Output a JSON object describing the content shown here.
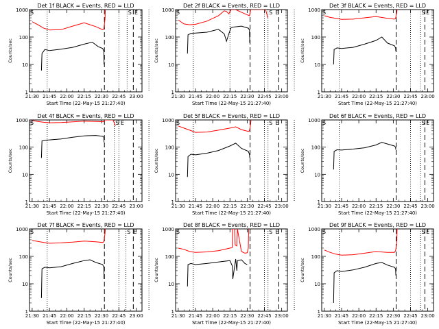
{
  "figure": {
    "background": "#ffffff",
    "events_color": "#000000",
    "lld_color": "#ff0000",
    "s_marker": "S",
    "e_marker": "E",
    "ylabel": "Counts/sec",
    "xlabel": "Start Time (22-May-15 21:27:40)",
    "xticks": [
      "21:30",
      "21:45",
      "22:00",
      "22:15",
      "22:30",
      "22:45",
      "23:00"
    ],
    "yticks": [
      "1",
      "10",
      "100",
      "1000"
    ]
  },
  "chart_data": [
    {
      "type": "line",
      "title": "Det 1f BLACK = Events, RED = LLD",
      "ylim": [
        1,
        1000
      ],
      "ylog": true,
      "x_range_min": [
        -2.3,
        95
      ],
      "s_marker_min": 84.5,
      "e_marker_min": 90,
      "dotted_min": [
        13,
        75,
        101
      ],
      "dashed_min": [
        62.5,
        87.5
      ],
      "series": [
        {
          "name": "Events",
          "x": [
            8,
            8.5,
            11,
            15,
            25,
            35,
            45,
            52,
            57,
            61,
            62,
            62.2
          ],
          "y": [
            6,
            25,
            35,
            32,
            36,
            42,
            55,
            65,
            45,
            38,
            30,
            10
          ]
        },
        {
          "name": "LLD",
          "x": [
            0,
            5,
            10,
            15,
            25,
            35,
            45,
            55,
            61,
            62,
            63,
            63.3
          ],
          "y": [
            360,
            280,
            210,
            180,
            185,
            250,
            330,
            240,
            185,
            200,
            460,
            1000
          ]
        }
      ]
    },
    {
      "type": "line",
      "title": "Det 2f BLACK = Events, RED = LLD",
      "ylim": [
        1,
        1000
      ],
      "ylog": true,
      "x_range_min": [
        -2.3,
        95
      ],
      "s_marker_min": 80.5,
      "e_marker_min": 86,
      "dotted_min": [
        13,
        45,
        75,
        101
      ],
      "dashed_min": [
        62.5,
        87.5
      ],
      "series": [
        {
          "name": "Events",
          "x": [
            8,
            8.5,
            11,
            15,
            25,
            35,
            40,
            42,
            44,
            46,
            48,
            55,
            61,
            62,
            62.2
          ],
          "y": [
            25,
            120,
            135,
            140,
            150,
            190,
            130,
            70,
            130,
            220,
            230,
            250,
            210,
            180,
            60
          ]
        },
        {
          "name": "LLD",
          "x": [
            0,
            5,
            10,
            15,
            25,
            35,
            40,
            42,
            44,
            46,
            50,
            55,
            61,
            62,
            63,
            63.3,
            68,
            72,
            74,
            76,
            78
          ],
          "y": [
            420,
            300,
            280,
            290,
            380,
            600,
            900,
            850,
            700,
            1100,
            1000,
            800,
            620,
            600,
            1000,
            1000,
            1000,
            1000,
            1000,
            1000,
            500
          ]
        }
      ]
    },
    {
      "type": "line",
      "title": "Det 3f BLACK = Events, RED = LLD",
      "ylim": [
        1,
        1000
      ],
      "ylog": true,
      "x_range_min": [
        -2.3,
        95
      ],
      "s_marker_min": 86,
      "e_marker_min": 90,
      "dotted_min": [
        13,
        75,
        101
      ],
      "dashed_min": [
        62.5,
        87.5
      ],
      "series": [
        {
          "name": "Events",
          "x": [
            8,
            8.5,
            11,
            15,
            25,
            35,
            45,
            50,
            55,
            61,
            62,
            62.2
          ],
          "y": [
            10,
            35,
            40,
            38,
            42,
            55,
            75,
            100,
            60,
            48,
            40,
            30
          ]
        },
        {
          "name": "LLD",
          "x": [
            0,
            5,
            10,
            15,
            25,
            35,
            45,
            55,
            61,
            62,
            63,
            63.3
          ],
          "y": [
            600,
            520,
            480,
            440,
            450,
            500,
            560,
            480,
            450,
            470,
            800,
            1000
          ]
        }
      ]
    },
    {
      "type": "line",
      "title": "Det 4f BLACK = Events, RED = LLD",
      "ylim": [
        1,
        1000
      ],
      "ylog": true,
      "x_range_min": [
        -2.3,
        95
      ],
      "s_marker_min": 73.5,
      "e_marker_min": 78,
      "dotted_min": [
        13,
        75,
        101
      ],
      "dashed_min": [
        62.5,
        87.5
      ],
      "series": [
        {
          "name": "Events",
          "x": [
            8,
            8.5,
            11,
            15,
            25,
            35,
            45,
            55,
            61,
            62,
            62.2
          ],
          "y": [
            40,
            170,
            180,
            185,
            200,
            230,
            260,
            270,
            250,
            230,
            150
          ]
        },
        {
          "name": "LLD",
          "x": [
            0,
            5,
            10,
            15,
            25,
            35,
            45,
            55,
            61,
            62,
            63,
            63.5,
            65,
            70,
            72
          ],
          "y": [
            950,
            880,
            820,
            790,
            800,
            850,
            900,
            880,
            860,
            870,
            1000,
            1000,
            1000,
            1000,
            600
          ]
        }
      ]
    },
    {
      "type": "line",
      "title": "Det 5f BLACK = Events, RED = LLD",
      "ylim": [
        1,
        1000
      ],
      "ylog": true,
      "x_range_min": [
        -2.3,
        95
      ],
      "s_marker_min": 80.5,
      "e_marker_min": 86,
      "dotted_min": [
        13,
        75,
        101
      ],
      "dashed_min": [
        62.5,
        87.5
      ],
      "series": [
        {
          "name": "Events",
          "x": [
            8,
            8.5,
            11,
            15,
            25,
            35,
            45,
            50,
            55,
            61,
            62,
            62.2
          ],
          "y": [
            8,
            45,
            55,
            52,
            60,
            75,
            110,
            140,
            90,
            70,
            55,
            40
          ]
        },
        {
          "name": "LLD",
          "x": [
            0,
            5,
            10,
            15,
            25,
            35,
            45,
            50,
            55,
            61,
            62,
            63,
            63.3
          ],
          "y": [
            600,
            500,
            420,
            350,
            360,
            420,
            500,
            560,
            440,
            380,
            400,
            700,
            1000
          ]
        }
      ]
    },
    {
      "type": "line",
      "title": "Det 6f BLACK = Events, RED = LLD",
      "ylim": [
        1,
        1000
      ],
      "ylog": true,
      "x_range_min": [
        -2.3,
        95
      ],
      "s_marker_min": 86,
      "e_marker_min": 90,
      "dotted_min": [
        13,
        75,
        101
      ],
      "dashed_min": [
        62.5,
        87.5
      ],
      "series": [
        {
          "name": "Events",
          "x": [
            8,
            8.5,
            11,
            15,
            25,
            35,
            45,
            50,
            55,
            61,
            62,
            62.2
          ],
          "y": [
            15,
            70,
            80,
            78,
            85,
            95,
            120,
            150,
            130,
            110,
            100,
            80
          ]
        }
      ]
    },
    {
      "type": "line",
      "title": "Det 7f BLACK = Events, RED = LLD",
      "ylim": [
        1,
        1000
      ],
      "ylog": true,
      "x_range_min": [
        -2.3,
        95
      ],
      "s_marker_min": 83.5,
      "e_marker_min": 89,
      "dotted_min": [
        13,
        75,
        101
      ],
      "dashed_min": [
        62.5,
        87.5
      ],
      "series": [
        {
          "name": "Events",
          "x": [
            8,
            8.5,
            11,
            15,
            25,
            35,
            45,
            50,
            55,
            61,
            62,
            62.2
          ],
          "y": [
            3,
            35,
            40,
            38,
            42,
            55,
            70,
            75,
            60,
            50,
            40,
            15
          ]
        },
        {
          "name": "LLD",
          "x": [
            0,
            5,
            10,
            15,
            25,
            35,
            45,
            55,
            61,
            62,
            63,
            63.3
          ],
          "y": [
            380,
            350,
            320,
            300,
            310,
            330,
            360,
            340,
            320,
            340,
            700,
            1000
          ]
        }
      ]
    },
    {
      "type": "line",
      "title": "Det 8f BLACK = Events, RED = LLD",
      "ylim": [
        1,
        1000
      ],
      "ylog": true,
      "x_range_min": [
        -2.3,
        95
      ],
      "s_marker_min": 80.5,
      "e_marker_min": 86,
      "dotted_min": [
        13,
        75,
        101
      ],
      "dashed_min": [
        62.5,
        87.5
      ],
      "series": [
        {
          "name": "Events",
          "x": [
            8,
            8.5,
            11,
            15,
            25,
            35,
            45,
            47,
            47.5,
            50,
            51,
            51.5,
            55,
            58,
            60
          ],
          "y": [
            8,
            50,
            55,
            50,
            55,
            62,
            70,
            45,
            15,
            80,
            30,
            70,
            75,
            55,
            50
          ]
        },
        {
          "name": "LLD",
          "x": [
            0,
            5,
            10,
            15,
            25,
            35,
            45,
            47,
            47.2,
            49,
            49.5,
            51,
            51.5,
            55,
            58,
            60,
            61,
            61.3
          ],
          "y": [
            200,
            180,
            150,
            140,
            145,
            160,
            200,
            210,
            1000,
            1000,
            260,
            240,
            1000,
            150,
            130,
            135,
            200,
            1000
          ]
        }
      ]
    },
    {
      "type": "line",
      "title": "Det 9f BLACK = Events, RED = LLD",
      "ylim": [
        1,
        1000
      ],
      "ylog": true,
      "x_range_min": [
        -2.3,
        95
      ],
      "s_marker_min": 86,
      "e_marker_min": 90,
      "dotted_min": [
        13,
        75,
        101
      ],
      "dashed_min": [
        62.5,
        87.5
      ],
      "series": [
        {
          "name": "Events",
          "x": [
            8,
            8.5,
            11,
            15,
            25,
            35,
            45,
            50,
            55,
            61,
            62,
            62.2
          ],
          "y": [
            2,
            25,
            30,
            28,
            32,
            40,
            55,
            60,
            48,
            40,
            35,
            20
          ]
        },
        {
          "name": "LLD",
          "x": [
            0,
            5,
            10,
            15,
            25,
            35,
            45,
            55,
            61,
            62,
            63,
            63.3
          ],
          "y": [
            170,
            140,
            120,
            110,
            115,
            130,
            150,
            140,
            140,
            160,
            300,
            1000
          ]
        }
      ]
    }
  ]
}
